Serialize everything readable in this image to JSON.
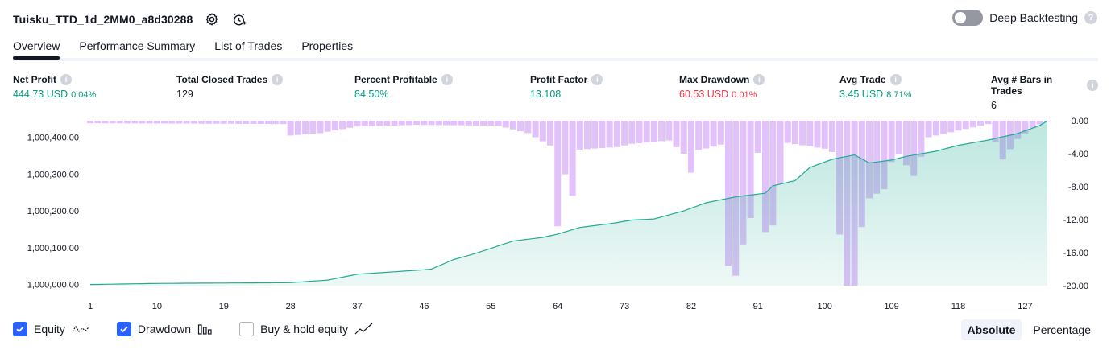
{
  "header": {
    "strategy_name": "Tuisku_TTD_1d_2MM0_a8d30288",
    "settings_icon": "gear-icon",
    "alert_icon": "alarm-clock-plus-icon",
    "deep_backtesting_label": "Deep Backtesting",
    "deep_backtesting_enabled": false,
    "help_icon": "question-icon",
    "help_text": "?"
  },
  "tabs": [
    {
      "label": "Overview",
      "active": true
    },
    {
      "label": "Performance Summary",
      "active": false
    },
    {
      "label": "List of Trades",
      "active": false
    },
    {
      "label": "Properties",
      "active": false
    }
  ],
  "metrics": [
    {
      "label": "Net Profit",
      "value": "444.73 USD",
      "pct": "0.04%",
      "color": "#089981"
    },
    {
      "label": "Total Closed Trades",
      "value": "129",
      "pct": "",
      "color": "#131722"
    },
    {
      "label": "Percent Profitable",
      "value": "84.50%",
      "pct": "",
      "color": "#089981"
    },
    {
      "label": "Profit Factor",
      "value": "13.108",
      "pct": "",
      "color": "#089981"
    },
    {
      "label": "Max Drawdown",
      "value": "60.53 USD",
      "pct": "0.01%",
      "color": "#f23645"
    },
    {
      "label": "Avg Trade",
      "value": "3.45 USD",
      "pct": "8.71%",
      "color": "#089981"
    },
    {
      "label": "Avg # Bars in Trades",
      "value": "6",
      "pct": "",
      "color": "#131722"
    }
  ],
  "info_icon": "info-icon",
  "info_text": "i",
  "chart_data": {
    "type": "area",
    "x_ticks": [
      1,
      10,
      19,
      28,
      37,
      46,
      55,
      64,
      73,
      82,
      91,
      100,
      109,
      118,
      127
    ],
    "y_left_ticks": [
      "1,000,000.00",
      "1,000,100.00",
      "1,000,200.00",
      "1,000,300.00",
      "1,000,400.00"
    ],
    "y_left_values": [
      1000000,
      1000100,
      1000200,
      1000300,
      1000400
    ],
    "y_left_range": [
      999997,
      1000444.73
    ],
    "y_right_ticks": [
      "0.00",
      "-4.00",
      "-8.00",
      "-12.00",
      "-16.00",
      "-20.00"
    ],
    "y_right_values": [
      0,
      -4,
      -8,
      -12,
      -16,
      -20
    ],
    "y_right_range": [
      -20,
      0
    ],
    "x_range": [
      1,
      130
    ],
    "equity_keypoints": [
      [
        1,
        1000000
      ],
      [
        10,
        1000003
      ],
      [
        28,
        1000005
      ],
      [
        33,
        1000012
      ],
      [
        37,
        1000028
      ],
      [
        46,
        1000040
      ],
      [
        47,
        1000042
      ],
      [
        50,
        1000068
      ],
      [
        53,
        1000085
      ],
      [
        58,
        1000118
      ],
      [
        62,
        1000128
      ],
      [
        64,
        1000137
      ],
      [
        67,
        1000155
      ],
      [
        71,
        1000165
      ],
      [
        74,
        1000175
      ],
      [
        77,
        1000178
      ],
      [
        81,
        1000200
      ],
      [
        84,
        1000222
      ],
      [
        88,
        1000238
      ],
      [
        92,
        1000248
      ],
      [
        93,
        1000268
      ],
      [
        96,
        1000282
      ],
      [
        98,
        1000318
      ],
      [
        101,
        1000340
      ],
      [
        104,
        1000352
      ],
      [
        106,
        1000330
      ],
      [
        109,
        1000338
      ],
      [
        111,
        1000348
      ],
      [
        115,
        1000362
      ],
      [
        118,
        1000378
      ],
      [
        122,
        1000392
      ],
      [
        126,
        1000410
      ],
      [
        129,
        1000432
      ],
      [
        130,
        1000444.73
      ]
    ],
    "drawdown_keypoints": [
      [
        1,
        -0.3
      ],
      [
        27,
        -0.4
      ],
      [
        28,
        -1.8
      ],
      [
        32,
        -1.5
      ],
      [
        37,
        -0.7
      ],
      [
        45,
        -0.5
      ],
      [
        56,
        -0.6
      ],
      [
        60,
        -1.5
      ],
      [
        63,
        -3.0
      ],
      [
        64,
        -12.8
      ],
      [
        65,
        -6.5
      ],
      [
        66,
        -9.1
      ],
      [
        67,
        -3.5
      ],
      [
        72,
        -3.2
      ],
      [
        74,
        -2.8
      ],
      [
        79,
        -2.4
      ],
      [
        81,
        -4.0
      ],
      [
        82,
        -6.3
      ],
      [
        83,
        -3.6
      ],
      [
        86,
        -2.9
      ],
      [
        87,
        -17.6
      ],
      [
        88,
        -18.8
      ],
      [
        89,
        -15.0
      ],
      [
        90,
        -11.8
      ],
      [
        91,
        -3.9
      ],
      [
        92,
        -13.5
      ],
      [
        93,
        -12.7
      ],
      [
        95,
        -2.7
      ],
      [
        100,
        -3.4
      ],
      [
        101,
        -3.8
      ],
      [
        102,
        -13.8
      ],
      [
        103,
        -20.0
      ],
      [
        104,
        -20.0
      ],
      [
        105,
        -12.9
      ],
      [
        106,
        -9.4
      ],
      [
        108,
        -8.3
      ],
      [
        109,
        -5.0
      ],
      [
        110,
        -4.1
      ],
      [
        112,
        -6.7
      ],
      [
        114,
        -2.0
      ],
      [
        120,
        -0.8
      ],
      [
        122,
        -0.4
      ],
      [
        124,
        -4.7
      ],
      [
        126,
        -2.2
      ],
      [
        128,
        -0.9
      ],
      [
        130,
        0
      ]
    ],
    "legend": [
      {
        "name": "Equity",
        "checked": true,
        "icon": "equity-line-icon"
      },
      {
        "name": "Drawdown",
        "checked": true,
        "icon": "drawdown-bars-icon"
      },
      {
        "name": "Buy & hold equity",
        "checked": false,
        "icon": "buy-hold-line-icon"
      }
    ],
    "colors": {
      "equity_line": "#22ab94",
      "equity_fill": "#22ab94",
      "drawdown": "#c585f5"
    }
  },
  "modes": [
    {
      "label": "Absolute",
      "active": true
    },
    {
      "label": "Percentage",
      "active": false
    }
  ]
}
